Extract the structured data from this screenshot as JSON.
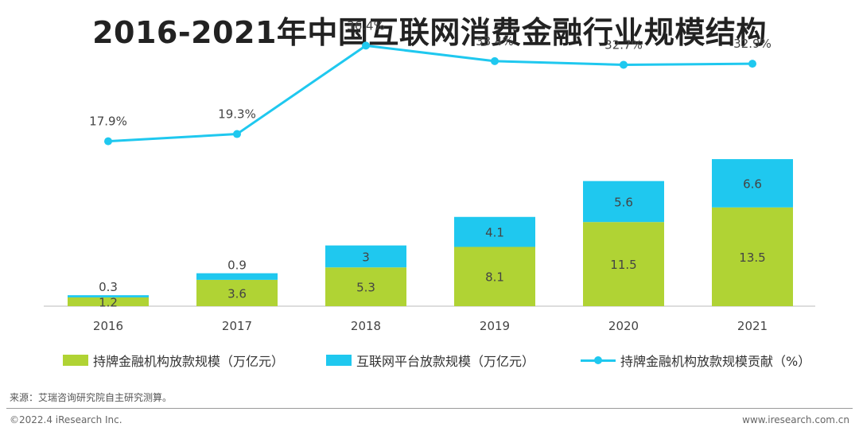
{
  "chart_data": {
    "type": "bar",
    "title": "2016-2021年中国互联网消费金融行业规模结构",
    "categories": [
      "2016",
      "2017",
      "2018",
      "2019",
      "2020",
      "2021"
    ],
    "stacked": true,
    "series": [
      {
        "name": "持牌金融机构放款规模（万亿元）",
        "type": "bar",
        "values": [
          1.2,
          3.6,
          5.3,
          8.1,
          11.5,
          13.5
        ]
      },
      {
        "name": "互联网平台放款规模（万亿元）",
        "type": "bar",
        "values": [
          0.3,
          0.9,
          3.0,
          4.1,
          5.6,
          6.6
        ]
      },
      {
        "name": "持牌金融机构放款规模贡献（%）",
        "type": "line",
        "values": [
          17.9,
          19.3,
          36.4,
          33.4,
          32.7,
          32.9
        ],
        "labels": [
          "17.9%",
          "19.3%",
          "36.4%",
          "33.4%",
          "32.7%",
          "32.9%"
        ]
      }
    ],
    "legend_position": "bottom",
    "grid": false
  },
  "colors": {
    "green": "#b0d334",
    "blue": "#1fc8ef",
    "line": "#1fc8ef",
    "axis": "#bbbbbb"
  },
  "source_text": "来源：艾瑞咨询研究院自主研究测算。",
  "footer": {
    "copyright": "©2022.4 iResearch Inc.",
    "website": "www.iresearch.com.cn"
  }
}
